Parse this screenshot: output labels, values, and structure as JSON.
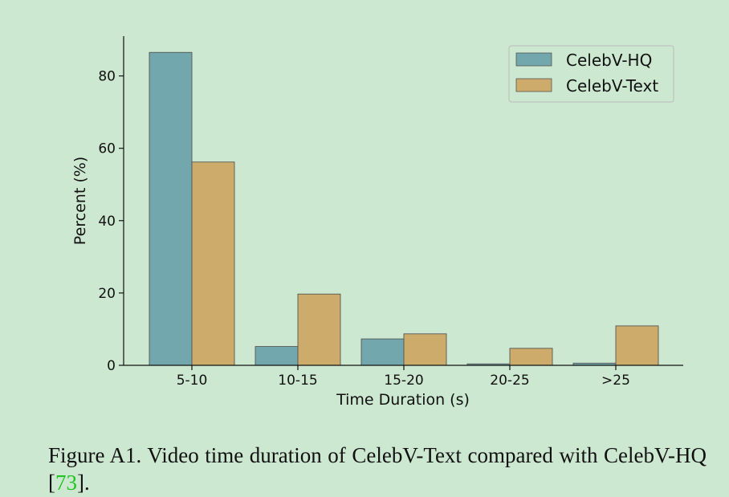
{
  "chart_data": {
    "type": "bar",
    "categories": [
      "5-10",
      "10-15",
      "15-20",
      "20-25",
      ">25"
    ],
    "series": [
      {
        "name": "CelebV-HQ",
        "color": "#72a8ad",
        "values": [
          86.5,
          5.2,
          7.3,
          0.4,
          0.6
        ]
      },
      {
        "name": "CelebV-Text",
        "color": "#cdac6b",
        "values": [
          56.2,
          19.7,
          8.7,
          4.7,
          10.9
        ]
      }
    ],
    "xlabel": "Time Duration (s)",
    "ylabel": "Percent (%)",
    "ylim": [
      0,
      91
    ],
    "yticks": [
      0,
      20,
      40,
      60,
      80
    ],
    "legend_position": "top-right",
    "grid": false
  },
  "caption": {
    "text": "Figure A1.  Video time duration of CelebV-Text compared with CelebV-HQ [",
    "citation": "73",
    "end": "]."
  }
}
